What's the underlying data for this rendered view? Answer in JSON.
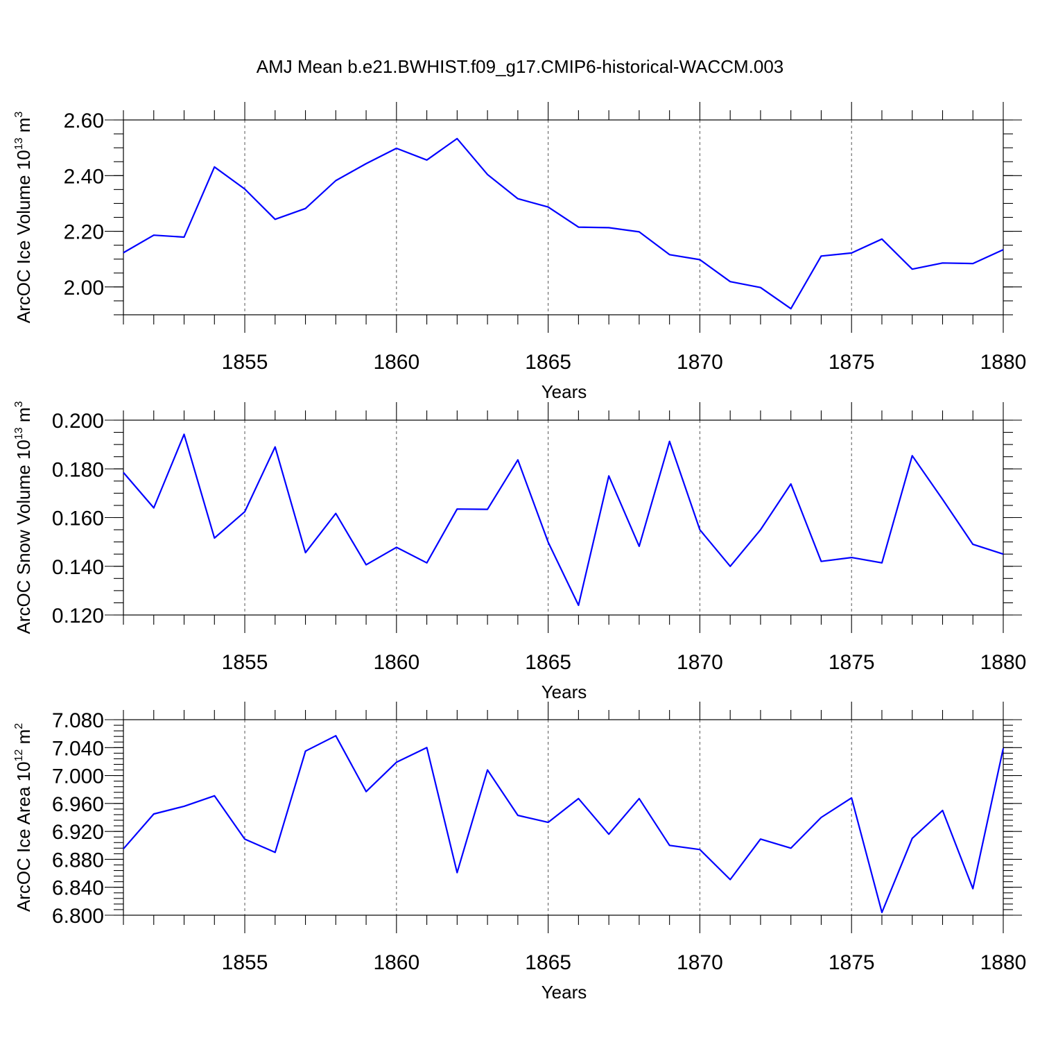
{
  "title": "AMJ Mean b.e21.BWHIST.f09_g17.CMIP6-historical-WACCM.003",
  "line_color": "#0000ff",
  "chart_data": [
    {
      "type": "line",
      "xlabel": "Years",
      "ylabel": {
        "text": "ArcOC Ice Volume 10",
        "exponent": "13",
        "unit": " m",
        "unit_exponent": "3"
      },
      "xlim": [
        1851,
        1880
      ],
      "ylim": [
        1.9,
        2.6
      ],
      "x_tick_labels": [
        "1855",
        "1860",
        "1865",
        "1870",
        "1875",
        "1880"
      ],
      "y_tick_labels": [
        "2.60",
        "2.40",
        "2.20",
        "2.00"
      ],
      "y_ticks": [
        2.6,
        2.4,
        2.2,
        2.0
      ],
      "y_minor_step": 0.05,
      "grid": "x-major-dashed",
      "x": [
        1851,
        1852,
        1853,
        1854,
        1855,
        1856,
        1857,
        1858,
        1859,
        1860,
        1861,
        1862,
        1863,
        1864,
        1865,
        1866,
        1867,
        1868,
        1869,
        1870,
        1871,
        1872,
        1873,
        1874,
        1875,
        1876,
        1877,
        1878,
        1879,
        1880
      ],
      "values": [
        2.123,
        2.186,
        2.179,
        2.431,
        2.352,
        2.243,
        2.282,
        2.382,
        2.443,
        2.498,
        2.456,
        2.533,
        2.404,
        2.317,
        2.287,
        2.215,
        2.213,
        2.198,
        2.116,
        2.098,
        2.019,
        1.998,
        1.922,
        2.111,
        2.122,
        2.172,
        2.064,
        2.086,
        2.084,
        2.134
      ]
    },
    {
      "type": "line",
      "xlabel": "Years",
      "ylabel": {
        "text": "ArcOC Snow Volume 10",
        "exponent": "13",
        "unit": " m",
        "unit_exponent": "3"
      },
      "xlim": [
        1851,
        1880
      ],
      "ylim": [
        0.12,
        0.2
      ],
      "x_tick_labels": [
        "1855",
        "1860",
        "1865",
        "1870",
        "1875",
        "1880"
      ],
      "y_tick_labels": [
        "0.200",
        "0.180",
        "0.160",
        "0.140",
        "0.120"
      ],
      "y_ticks": [
        0.2,
        0.18,
        0.16,
        0.14,
        0.12
      ],
      "y_minor_step": 0.005,
      "grid": "x-major-dashed",
      "x": [
        1851,
        1852,
        1853,
        1854,
        1855,
        1856,
        1857,
        1858,
        1859,
        1860,
        1861,
        1862,
        1863,
        1864,
        1865,
        1866,
        1867,
        1868,
        1869,
        1870,
        1871,
        1872,
        1873,
        1874,
        1875,
        1876,
        1877,
        1878,
        1879,
        1880
      ],
      "values": [
        0.1785,
        0.164,
        0.1942,
        0.1516,
        0.1624,
        0.189,
        0.1456,
        0.1617,
        0.1406,
        0.1478,
        0.1414,
        0.1635,
        0.1634,
        0.1837,
        0.1499,
        0.124,
        0.1771,
        0.1482,
        0.1913,
        0.155,
        0.14,
        0.155,
        0.1738,
        0.142,
        0.1436,
        0.1414,
        0.1854,
        0.1675,
        0.149,
        0.145
      ]
    },
    {
      "type": "line",
      "xlabel": "Years",
      "ylabel": {
        "text": "ArcOC Ice Area 10",
        "exponent": "12",
        "unit": " m",
        "unit_exponent": "2"
      },
      "xlim": [
        1851,
        1880
      ],
      "ylim": [
        6.8,
        7.08
      ],
      "x_tick_labels": [
        "1855",
        "1860",
        "1865",
        "1870",
        "1875",
        "1880"
      ],
      "y_tick_labels": [
        "7.080",
        "7.040",
        "7.000",
        "6.960",
        "6.920",
        "6.880",
        "6.840",
        "6.800"
      ],
      "y_ticks": [
        7.08,
        7.04,
        7.0,
        6.96,
        6.92,
        6.88,
        6.84,
        6.8
      ],
      "y_minor_step": 0.008,
      "grid": "x-major-dashed",
      "x": [
        1851,
        1852,
        1853,
        1854,
        1855,
        1856,
        1857,
        1858,
        1859,
        1860,
        1861,
        1862,
        1863,
        1864,
        1865,
        1866,
        1867,
        1868,
        1869,
        1870,
        1871,
        1872,
        1873,
        1874,
        1875,
        1876,
        1877,
        1878,
        1879,
        1880
      ],
      "values": [
        6.895,
        6.945,
        6.956,
        6.971,
        6.909,
        6.89,
        7.035,
        7.057,
        6.977,
        7.019,
        7.04,
        6.861,
        7.008,
        6.943,
        6.933,
        6.967,
        6.916,
        6.967,
        6.9,
        6.894,
        6.851,
        6.909,
        6.896,
        6.94,
        6.968,
        6.804,
        6.91,
        6.95,
        6.838,
        7.039
      ]
    }
  ]
}
